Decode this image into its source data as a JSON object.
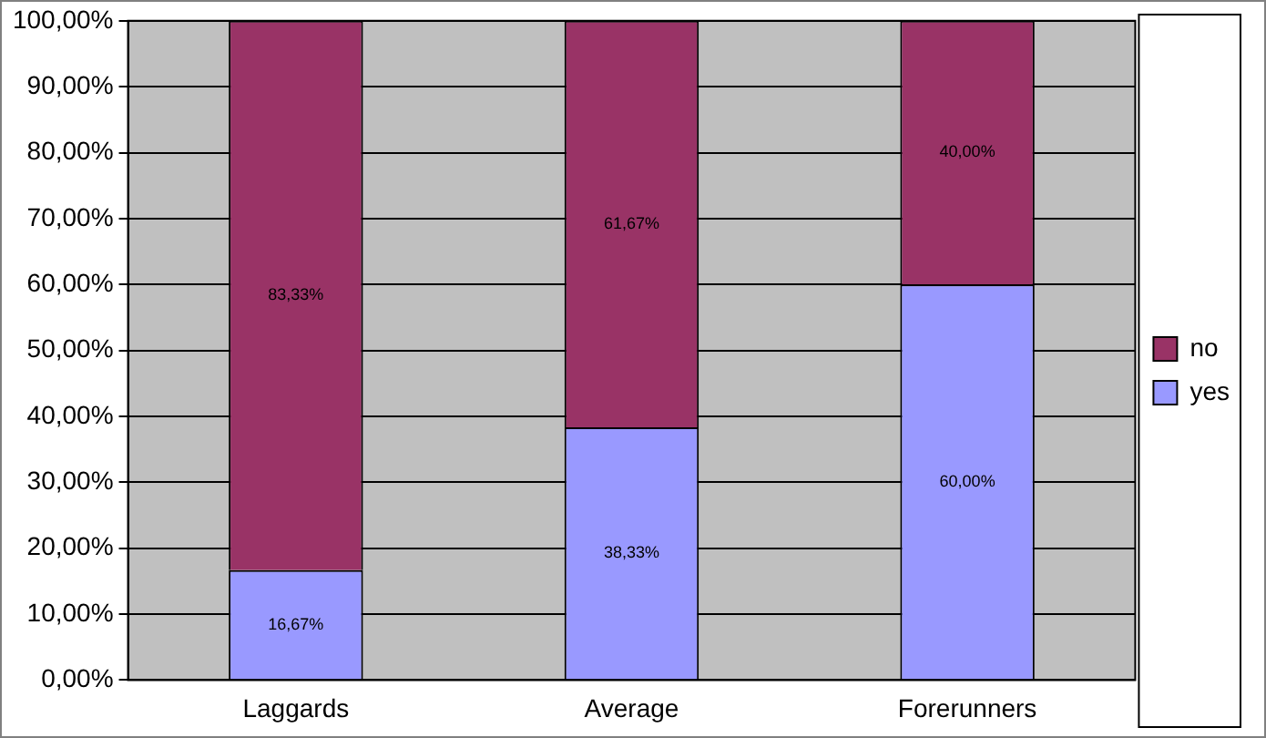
{
  "chart_data": {
    "type": "bar",
    "categories": [
      "Laggards",
      "Average",
      "Forerunners"
    ],
    "stacked": true,
    "series": [
      {
        "name": "yes",
        "color": "#9999ff",
        "values": [
          16.67,
          38.33,
          60
        ],
        "value_labels": [
          "16,67%",
          "38,33%",
          "60,00%"
        ]
      },
      {
        "name": "no",
        "color": "#993366",
        "values": [
          83.33,
          61.67,
          40
        ],
        "value_labels": [
          "83,33%",
          "61,67%",
          "40,00%"
        ]
      }
    ],
    "ylim": [
      0,
      100
    ],
    "yticks": [
      {
        "value": 0,
        "label": "0,00%"
      },
      {
        "value": 10,
        "label": "10,00%"
      },
      {
        "value": 20,
        "label": "20,00%"
      },
      {
        "value": 30,
        "label": "30,00%"
      },
      {
        "value": 40,
        "label": "40,00%"
      },
      {
        "value": 50,
        "label": "50,00%"
      },
      {
        "value": 60,
        "label": "60,00%"
      },
      {
        "value": 70,
        "label": "70,00%"
      },
      {
        "value": 80,
        "label": "80,00%"
      },
      {
        "value": 90,
        "label": "90,00%"
      },
      {
        "value": 100,
        "label": "100,00%"
      }
    ],
    "grid": "y",
    "legend": "right"
  }
}
